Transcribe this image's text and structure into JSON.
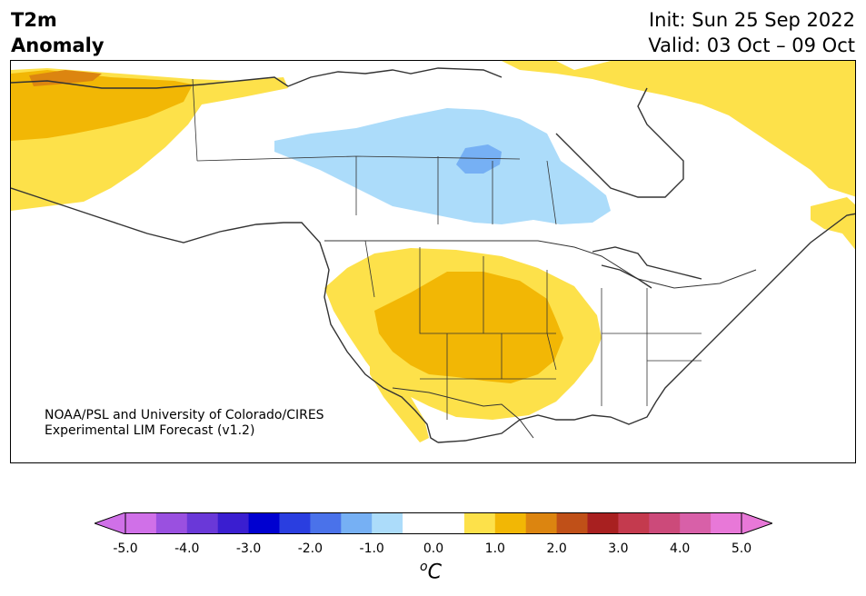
{
  "title": {
    "line1": "T2m",
    "line2": "Anomaly"
  },
  "dates": {
    "init": "Init: Sun 25 Sep 2022",
    "valid": "Valid: 03 Oct – 09 Oct"
  },
  "credit": {
    "line1": "NOAA/PSL and University of Colorado/CIRES",
    "line2": "Experimental LIM Forecast (v1.2)"
  },
  "colorbar": {
    "ticks": [
      "-5.0",
      "-4.0",
      "-3.0",
      "-2.0",
      "-1.0",
      "0.0",
      "1.0",
      "2.0",
      "3.0",
      "4.0",
      "5.0"
    ],
    "unit_o": "o",
    "unit_c": "C",
    "under_color": "#d070e8",
    "over_color": "#e878d8",
    "colors": [
      "#d070e8",
      "#9a50e0",
      "#6a38d8",
      "#3a1ed0",
      "#0000d0",
      "#2a3ee0",
      "#4a72ea",
      "#76b0f4",
      "#acdcfa",
      "#ffffff",
      "#ffffff",
      "#fde14a",
      "#f2b705",
      "#dc8510",
      "#c05018",
      "#a82020",
      "#c43a4e",
      "#cc4a7a",
      "#d860a8",
      "#e878d8"
    ]
  },
  "palette": {
    "warm1": "#fde14a",
    "warm2": "#f2b705",
    "warm3": "#dc8510",
    "cool1": "#acdcfa",
    "cool2": "#76b0f4"
  }
}
